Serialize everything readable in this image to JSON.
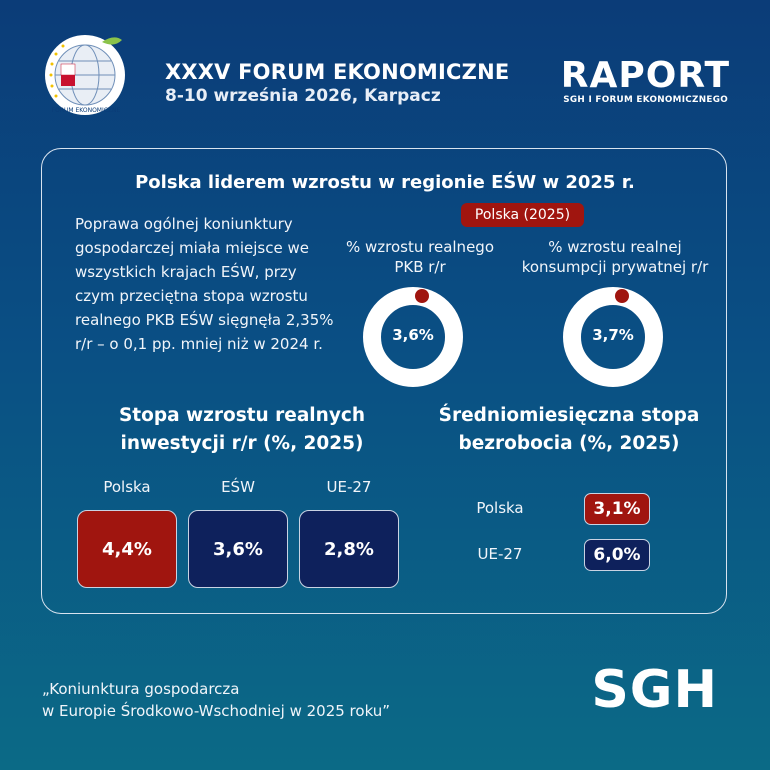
{
  "header": {
    "logo_icon": "forum-ekonomiczne-globe-icon",
    "logo_caption": "FORUM EKONOMICZNE",
    "event_title": "XXXV FORUM EKONOMICZNE",
    "event_date": "8-10 września 2026, Karpacz",
    "report_title": "RAPORT",
    "report_subtitle": "SGH I FORUM EKONOMICZNEGO"
  },
  "card": {
    "title": "Polska liderem wzrostu w regionie EŚW w 2025 r.",
    "intro": "Poprawa ogólnej koniunktury gospodarczej miała miejsce we wszystkich krajach EŚW, przy czym przeciętna stopa wzrostu realnego PKB EŚW sięgnęła 2,35% r/r – o 0,1 pp. mniej niż w 2024 r.",
    "poland_badge": "Polska (2025)",
    "donuts": [
      {
        "label_line1": "% wzrostu realnego",
        "label_line2": "PKB r/r",
        "value": "3,6%",
        "value_num": 3.6
      },
      {
        "label_line1": "% wzrostu realnej",
        "label_line2": "konsumpcji prywatnej r/r",
        "value": "3,7%",
        "value_num": 3.7
      }
    ],
    "investment": {
      "title_line1": "Stopa wzrostu realnych",
      "title_line2": "inwestycji r/r (%, 2025)",
      "items": [
        {
          "label": "Polska",
          "value": "4,4%",
          "color": "#a0150f"
        },
        {
          "label": "EŚW",
          "value": "3,6%",
          "color": "#0e215c"
        },
        {
          "label": "UE-27",
          "value": "2,8%",
          "color": "#0e215c"
        }
      ]
    },
    "unemployment": {
      "title_line1": "Średniomiesięczna stopa",
      "title_line2": "bezrobocia (%, 2025)",
      "items": [
        {
          "label": "Polska",
          "value": "3,1%",
          "color": "#a0150f"
        },
        {
          "label": "UE-27",
          "value": "6,0%",
          "color": "#0e215c"
        }
      ]
    }
  },
  "footer": {
    "quote_line1": "„Koniunktura gospodarcza",
    "quote_line2": "w Europie Środkowo-Wschodniej w 2025 roku”",
    "brand": "SGH"
  }
}
